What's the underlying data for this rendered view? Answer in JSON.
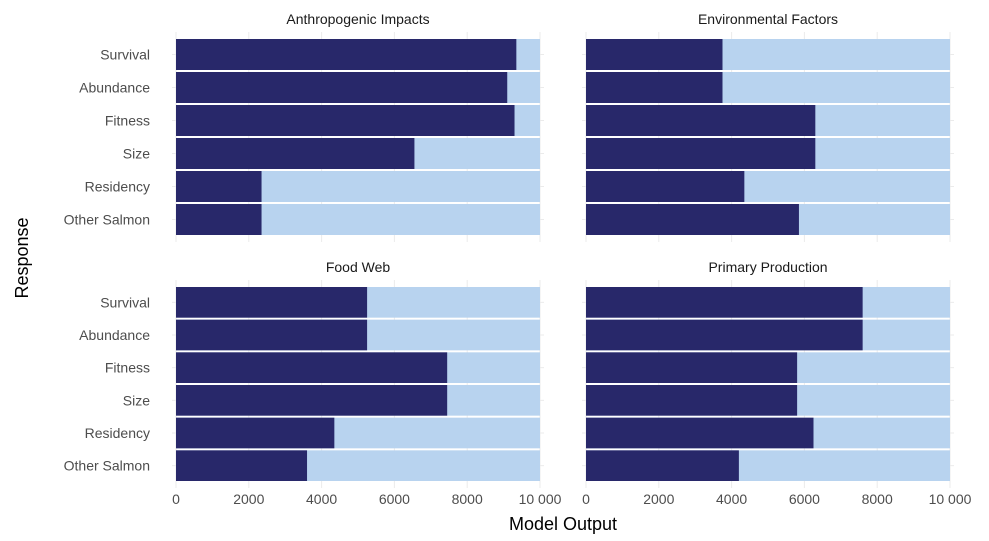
{
  "colors": {
    "dark_bar": "#28286a",
    "light_bar": "#b8d3ef",
    "grid": "#ebebeb",
    "text": "#4d4d4d"
  },
  "chart_data": {
    "type": "bar",
    "orientation": "horizontal",
    "stacked": true,
    "xlabel": "Model Output",
    "ylabel": "Response",
    "xlim": [
      0,
      10000
    ],
    "x_ticks": [
      "0",
      "2000",
      "4000",
      "6000",
      "8000",
      "10 000"
    ],
    "categories": [
      "Survival",
      "Abundance",
      "Fitness",
      "Size",
      "Residency",
      "Other Salmon"
    ],
    "grid": true,
    "legend": "none",
    "panels": [
      {
        "title": "Anthropogenic Impacts",
        "values": [
          9350,
          9100,
          9300,
          6550,
          2350,
          2350
        ]
      },
      {
        "title": "Environmental Factors",
        "values": [
          3750,
          3750,
          6300,
          6300,
          4350,
          5850
        ]
      },
      {
        "title": "Food Web",
        "values": [
          5250,
          5250,
          7450,
          7450,
          4350,
          3600
        ]
      },
      {
        "title": "Primary Production",
        "values": [
          7600,
          7600,
          5800,
          5800,
          6250,
          4200
        ]
      }
    ]
  }
}
